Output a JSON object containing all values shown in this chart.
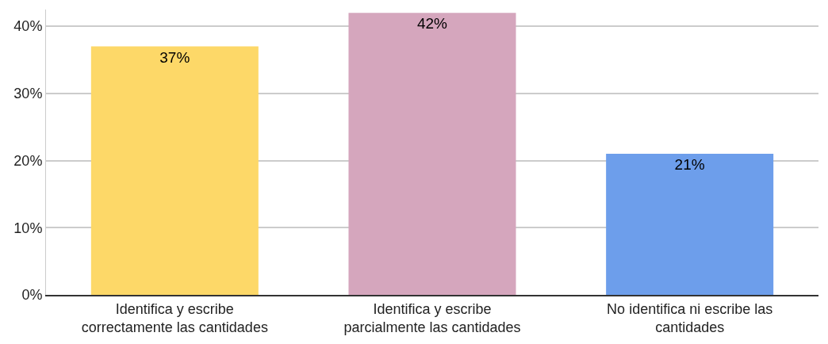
{
  "chart_data": {
    "type": "bar",
    "categories": [
      "Identifica y escribe correctamente las cantidades",
      "Identifica y escribe parcialmente las cantidades",
      "No identifica ni escribe las cantidades"
    ],
    "values": [
      37,
      42,
      21
    ],
    "value_labels": [
      "37%",
      "42%",
      "21%"
    ],
    "colors": [
      "#fdd868",
      "#d5a6bd",
      "#6d9eeb"
    ],
    "ylim": [
      0,
      42.5
    ],
    "yticks": [
      {
        "value": 0,
        "label": "0%"
      },
      {
        "value": 10,
        "label": "10%"
      },
      {
        "value": 20,
        "label": "20%"
      },
      {
        "value": 30,
        "label": "30%"
      },
      {
        "value": 40,
        "label": "40%"
      }
    ],
    "grid": "y",
    "legend": false
  }
}
